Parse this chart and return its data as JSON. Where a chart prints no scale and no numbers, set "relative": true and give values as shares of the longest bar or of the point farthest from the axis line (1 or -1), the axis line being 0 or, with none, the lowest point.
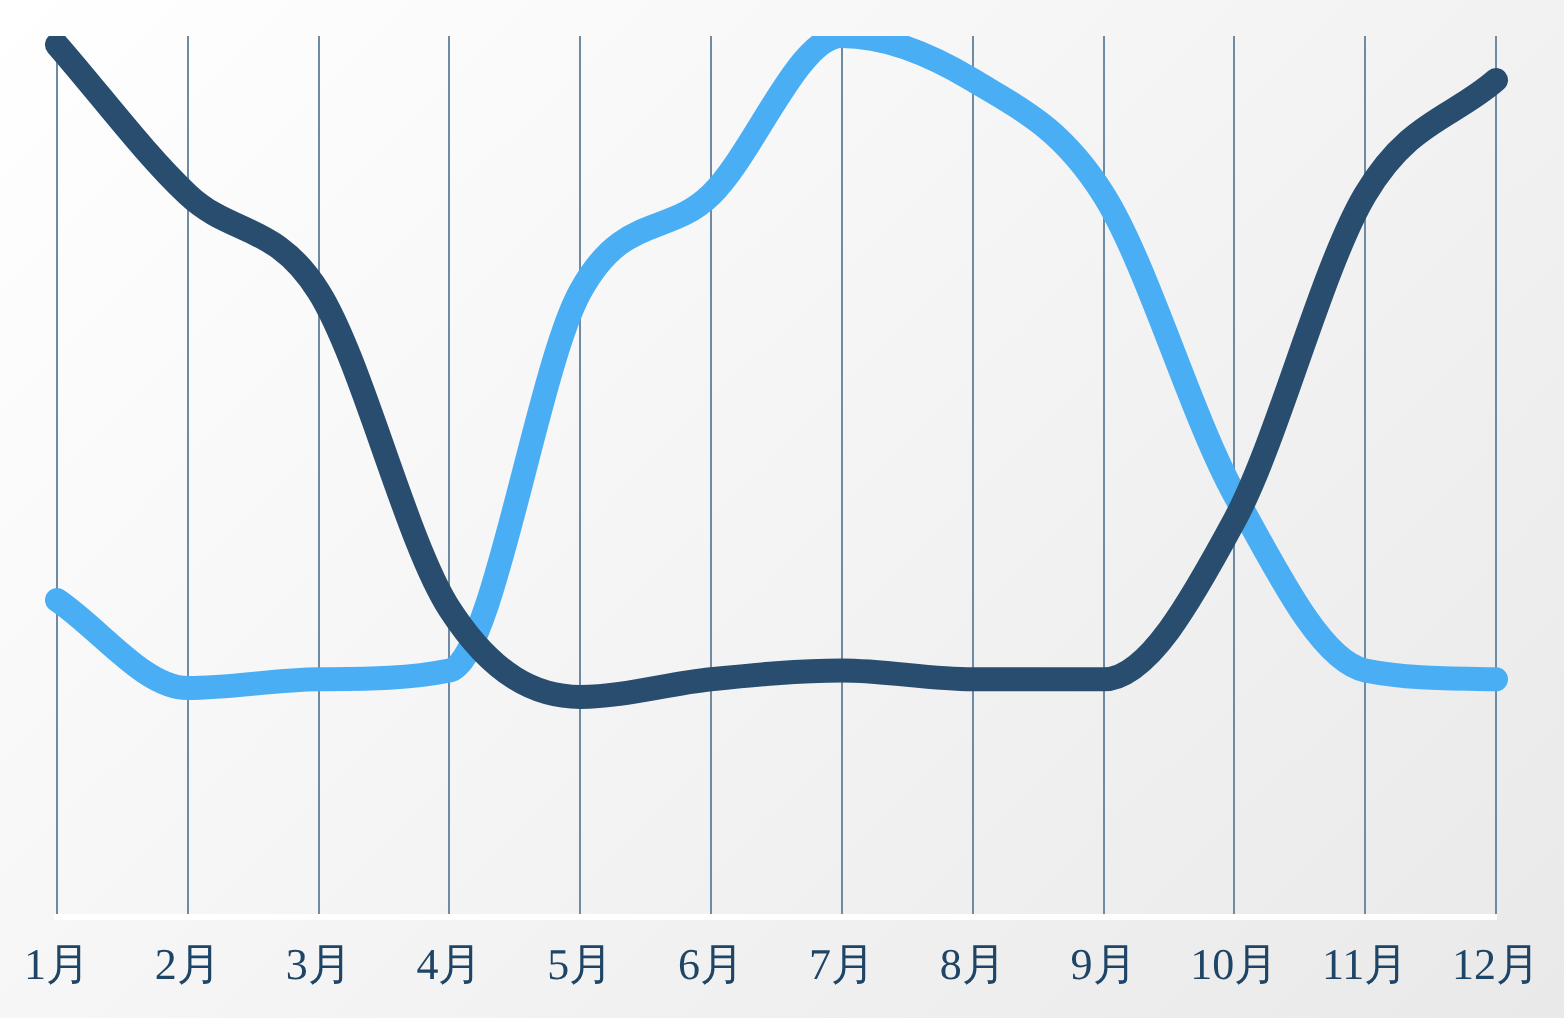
{
  "chart_data": {
    "type": "line",
    "relative": true,
    "grid": "x",
    "marker": "none",
    "categories": [
      "1月",
      "2月",
      "3月",
      "4月",
      "5月",
      "6月",
      "7月",
      "8月",
      "9月",
      "10月",
      "11月",
      "12月"
    ],
    "series": [
      {
        "color": "#284d6e",
        "values": [
          0.99,
          0.82,
          0.71,
          0.35,
          0.25,
          0.27,
          0.28,
          0.27,
          0.27,
          0.45,
          0.82,
          0.95
        ]
      },
      {
        "color": "#4aaef5",
        "values": [
          0.36,
          0.26,
          0.27,
          0.28,
          0.71,
          0.82,
          1,
          0.95,
          0.82,
          0.48,
          0.28,
          0.27
        ]
      }
    ]
  }
}
